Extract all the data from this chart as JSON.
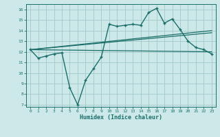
{
  "xlabel": "Humidex (Indice chaleur)",
  "bg_color": "#cde8e8",
  "line_color": "#1a6e6a",
  "grid_color": "#a0c8c8",
  "ylim": [
    6.8,
    16.5
  ],
  "xlim": [
    -0.5,
    23.5
  ],
  "yticks": [
    7,
    8,
    9,
    10,
    11,
    12,
    13,
    14,
    15,
    16
  ],
  "xticks": [
    0,
    1,
    2,
    3,
    4,
    5,
    6,
    7,
    8,
    9,
    10,
    11,
    12,
    13,
    14,
    15,
    16,
    17,
    18,
    19,
    20,
    21,
    22,
    23
  ],
  "line1_x": [
    0,
    1,
    2,
    3,
    4,
    5,
    6,
    7,
    8,
    9,
    10,
    11,
    12,
    13,
    14,
    15,
    16,
    17,
    18,
    19,
    20,
    21,
    22,
    23
  ],
  "line1_y": [
    12.2,
    11.4,
    11.6,
    11.8,
    11.9,
    8.6,
    7.0,
    9.3,
    10.4,
    11.5,
    14.6,
    14.4,
    14.5,
    14.6,
    14.5,
    15.7,
    16.1,
    14.7,
    15.1,
    14.1,
    13.0,
    12.4,
    12.2,
    11.8
  ],
  "line2_x": [
    0,
    23
  ],
  "line2_y": [
    12.2,
    12.0
  ],
  "line3_x": [
    0,
    23
  ],
  "line3_y": [
    12.2,
    13.8
  ],
  "line4_x": [
    0,
    23
  ],
  "line4_y": [
    12.2,
    14.0
  ]
}
